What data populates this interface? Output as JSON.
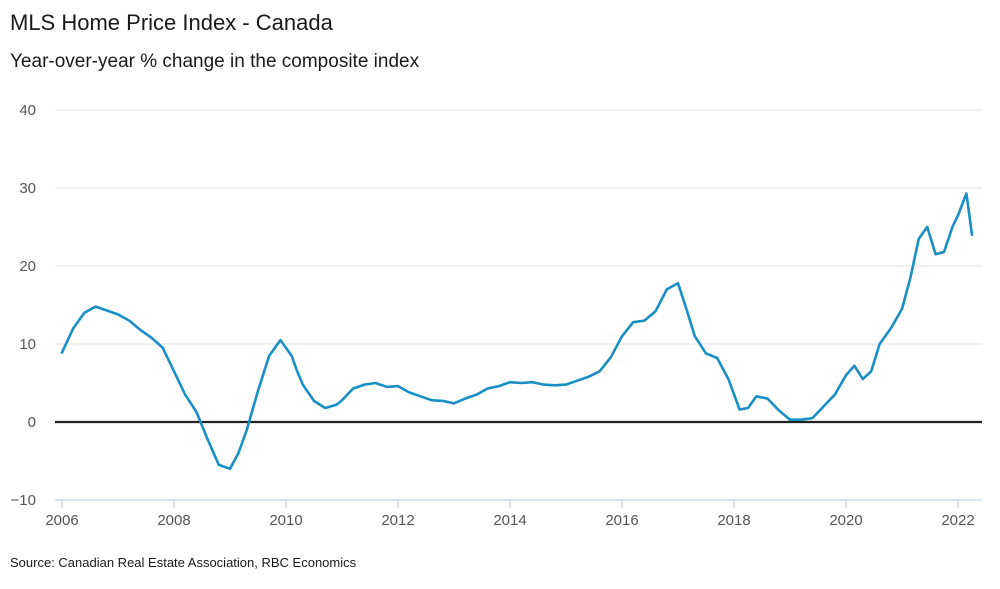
{
  "chart_data": {
    "type": "line",
    "title": "MLS Home Price Index - Canada",
    "subtitle": "Year-over-year % change in the composite index",
    "source": "Source: Canadian Real Estate Association, RBC Economics",
    "xlabel": "",
    "ylabel": "",
    "xlim": [
      2006,
      2022.4
    ],
    "ylim": [
      -10,
      40
    ],
    "y_ticks": [
      "−10",
      "0",
      "10",
      "20",
      "30",
      "40"
    ],
    "y_tick_values": [
      -10,
      0,
      10,
      20,
      30,
      40
    ],
    "x_ticks": [
      "2006",
      "2008",
      "2010",
      "2012",
      "2014",
      "2016",
      "2018",
      "2020",
      "2022"
    ],
    "x_tick_values": [
      2006,
      2008,
      2010,
      2012,
      2014,
      2016,
      2018,
      2020,
      2022
    ],
    "grid": true,
    "colors": {
      "series": "#1a8fc4",
      "zero_line": "#222222",
      "grid": "#e3e3e3",
      "axis": "#c8d3e0"
    },
    "series": [
      {
        "name": "YoY % change",
        "x": [
          2006.0,
          2006.2,
          2006.4,
          2006.6,
          2006.8,
          2007.0,
          2007.2,
          2007.4,
          2007.6,
          2007.8,
          2008.0,
          2008.2,
          2008.4,
          2008.6,
          2008.8,
          2009.0,
          2009.15,
          2009.3,
          2009.5,
          2009.7,
          2009.9,
          2010.1,
          2010.2,
          2010.3,
          2010.5,
          2010.7,
          2010.9,
          2011.0,
          2011.2,
          2011.4,
          2011.6,
          2011.8,
          2012.0,
          2012.2,
          2012.4,
          2012.6,
          2012.8,
          2013.0,
          2013.2,
          2013.4,
          2013.6,
          2013.8,
          2014.0,
          2014.2,
          2014.4,
          2014.6,
          2014.8,
          2015.0,
          2015.2,
          2015.4,
          2015.6,
          2015.8,
          2016.0,
          2016.2,
          2016.4,
          2016.6,
          2016.8,
          2017.0,
          2017.15,
          2017.3,
          2017.5,
          2017.7,
          2017.9,
          2018.1,
          2018.25,
          2018.4,
          2018.6,
          2018.8,
          2019.0,
          2019.2,
          2019.4,
          2019.6,
          2019.8,
          2020.0,
          2020.15,
          2020.3,
          2020.45,
          2020.6,
          2020.8,
          2021.0,
          2021.15,
          2021.3,
          2021.45,
          2021.6,
          2021.75,
          2021.9,
          2022.0,
          2022.15,
          2022.25
        ],
        "values": [
          8.9,
          12.0,
          14.0,
          14.8,
          14.3,
          13.8,
          13.0,
          11.8,
          10.8,
          9.5,
          6.5,
          3.5,
          1.3,
          -2.2,
          -5.5,
          -6.0,
          -4.0,
          -1.0,
          4.0,
          8.5,
          10.5,
          8.5,
          6.5,
          4.8,
          2.7,
          1.8,
          2.2,
          2.8,
          4.3,
          4.8,
          5.0,
          4.5,
          4.6,
          3.8,
          3.3,
          2.8,
          2.7,
          2.4,
          3.0,
          3.5,
          4.3,
          4.6,
          5.1,
          5.0,
          5.1,
          4.8,
          4.7,
          4.8,
          5.3,
          5.8,
          6.5,
          8.3,
          11.0,
          12.8,
          13.0,
          14.2,
          17.0,
          17.8,
          14.5,
          11.0,
          8.8,
          8.2,
          5.5,
          1.6,
          1.8,
          3.3,
          3.0,
          1.5,
          0.3,
          0.3,
          0.5,
          2.0,
          3.5,
          6.0,
          7.2,
          5.5,
          6.5,
          10.0,
          12.0,
          14.5,
          18.5,
          23.5,
          25.0,
          21.5,
          21.8,
          25.0,
          26.5,
          29.3,
          24.0
        ]
      }
    ]
  }
}
